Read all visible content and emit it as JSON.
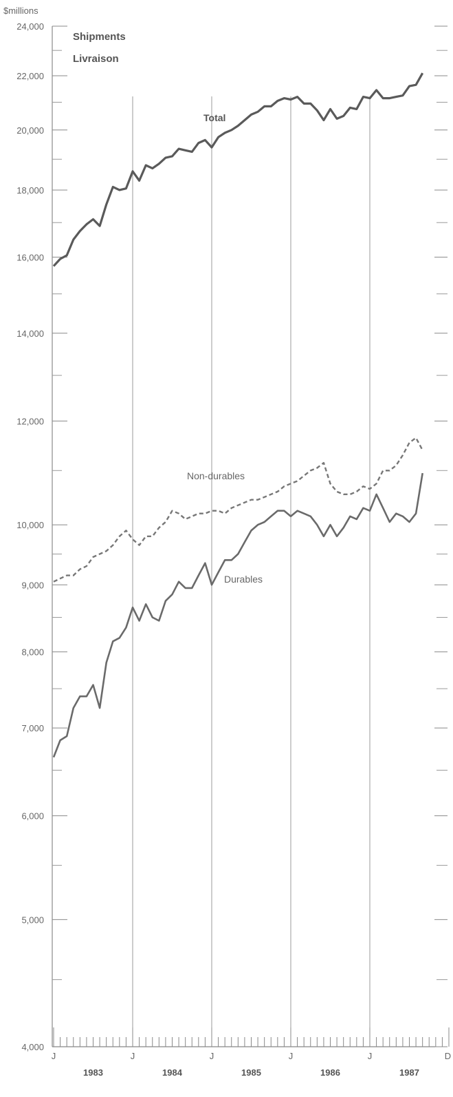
{
  "chart_data": {
    "type": "line",
    "title": "Shipments",
    "subtitle": "Livraison",
    "ylabel": "$millions",
    "yscale": "log",
    "ylim": [
      4000,
      24000
    ],
    "yticks": [
      4000,
      5000,
      6000,
      7000,
      8000,
      9000,
      10000,
      12000,
      14000,
      16000,
      18000,
      20000,
      22000,
      24000
    ],
    "ytick_labels": [
      "4,000",
      "5,000",
      "6,000",
      "7,000",
      "8,000",
      "9,000",
      "10,000",
      "12,000",
      "14,000",
      "16,000",
      "18,000",
      "20,000",
      "22,000",
      "24,000"
    ],
    "x_month_labels": [
      "J",
      "J",
      "J",
      "J",
      "J",
      "D"
    ],
    "x_year_labels": [
      "1983",
      "1984",
      "1985",
      "1986",
      "1987"
    ],
    "x_start": "1983-01",
    "x_end": "1987-12",
    "grid": "vertical lines at each January",
    "series": [
      {
        "name": "Total",
        "style": "solid-bold",
        "color": "#5a5a5a",
        "values": [
          15750,
          15950,
          16050,
          16500,
          16750,
          16950,
          17100,
          16900,
          17550,
          18100,
          18000,
          18050,
          18600,
          18300,
          18800,
          18700,
          18850,
          19050,
          19100,
          19350,
          19300,
          19250,
          19550,
          19650,
          19400,
          19750,
          19900,
          20000,
          20150,
          20350,
          20550,
          20650,
          20850,
          20850,
          21050,
          21150,
          21100,
          21200,
          20950,
          20950,
          20700,
          20350,
          20750,
          20400,
          20500,
          20800,
          20750,
          21200,
          21150,
          21450,
          21150,
          21150,
          21200,
          21250,
          21600,
          21650,
          22100
        ]
      },
      {
        "name": "Non-durables",
        "style": "dashed",
        "color": "#777777",
        "values": [
          9050,
          9100,
          9150,
          9150,
          9250,
          9300,
          9450,
          9500,
          9550,
          9650,
          9800,
          9900,
          9750,
          9650,
          9800,
          9800,
          9950,
          10050,
          10250,
          10200,
          10100,
          10150,
          10200,
          10200,
          10250,
          10250,
          10200,
          10300,
          10350,
          10400,
          10450,
          10450,
          10500,
          10550,
          10600,
          10700,
          10750,
          10800,
          10900,
          11000,
          11050,
          11150,
          10750,
          10600,
          10550,
          10550,
          10600,
          10700,
          10650,
          10750,
          11000,
          11000,
          11100,
          11300,
          11550,
          11650,
          11400
        ]
      },
      {
        "name": "Durables",
        "style": "solid",
        "color": "#6a6a6a",
        "values": [
          6650,
          6850,
          6900,
          7250,
          7400,
          7400,
          7550,
          7250,
          7850,
          8150,
          8200,
          8350,
          8650,
          8450,
          8700,
          8500,
          8450,
          8750,
          8850,
          9050,
          8950,
          8950,
          9150,
          9350,
          9000,
          9200,
          9400,
          9400,
          9500,
          9700,
          9900,
          10000,
          10050,
          10150,
          10250,
          10250,
          10150,
          10250,
          10200,
          10150,
          10000,
          9800,
          10000,
          9800,
          9950,
          10150,
          10100,
          10300,
          10250,
          10550,
          10300,
          10050,
          10200,
          10150,
          10050,
          10200,
          10950
        ]
      }
    ]
  }
}
